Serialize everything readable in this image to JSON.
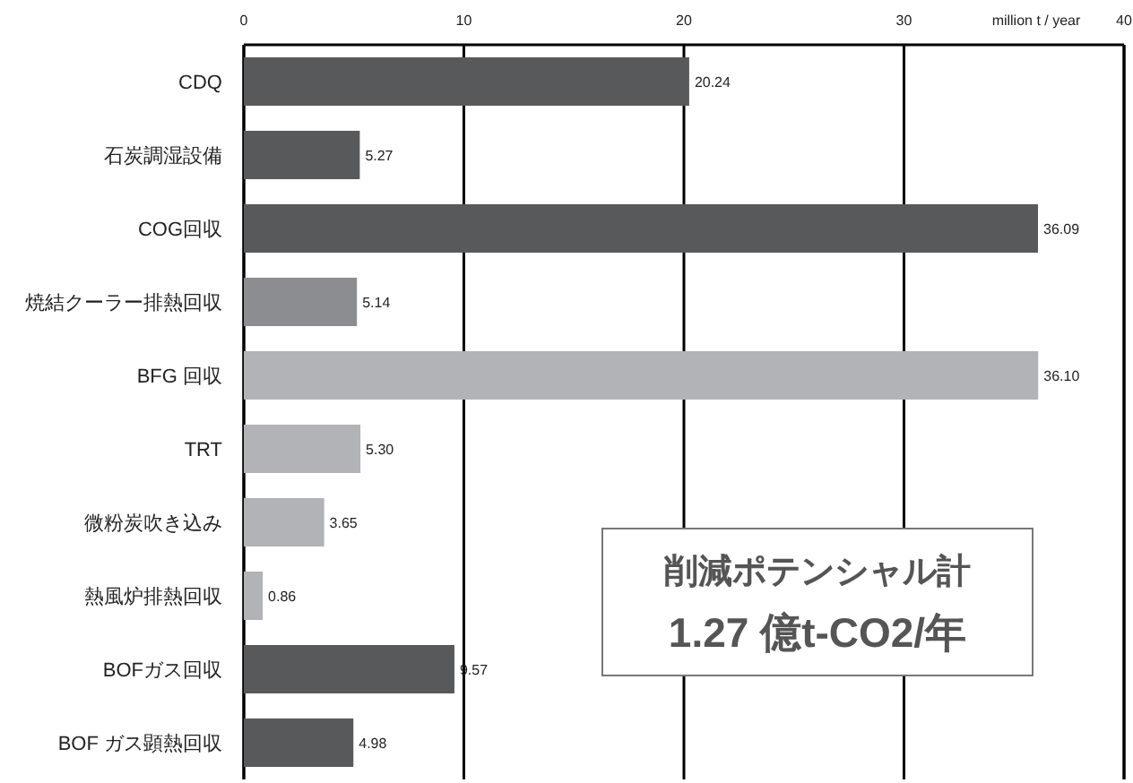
{
  "chart_data": {
    "type": "bar",
    "orientation": "horizontal",
    "categories": [
      "CDQ",
      "石炭調湿設備",
      "COG回収",
      "焼結クーラー排熱回収",
      "BFG 回収",
      "TRT",
      "微粉炭吹き込み",
      "熱風炉排熱回収",
      "BOFガス回収",
      "BOF ガス顕熱回収"
    ],
    "values": [
      20.24,
      5.27,
      36.09,
      5.14,
      36.1,
      5.3,
      3.65,
      0.86,
      9.57,
      4.98
    ],
    "value_labels": [
      "20.24",
      "5.27",
      "36.09",
      "5.14",
      "36.10",
      "5.30",
      "3.65",
      "0.86",
      "9.57",
      "4.98"
    ],
    "colors": [
      "#58595b",
      "#58595b",
      "#58595b",
      "#8c8d90",
      "#b1b3b6",
      "#b1b3b6",
      "#b1b3b6",
      "#b1b3b6",
      "#58595b",
      "#58595b"
    ],
    "xlabel": "million t / year",
    "xlim": [
      0,
      40
    ],
    "xticks": [
      0,
      10,
      20,
      30,
      40
    ],
    "grid": "x",
    "annotations": [
      "削減ポテンシャル計",
      "1.27 億t-CO2/年"
    ]
  }
}
